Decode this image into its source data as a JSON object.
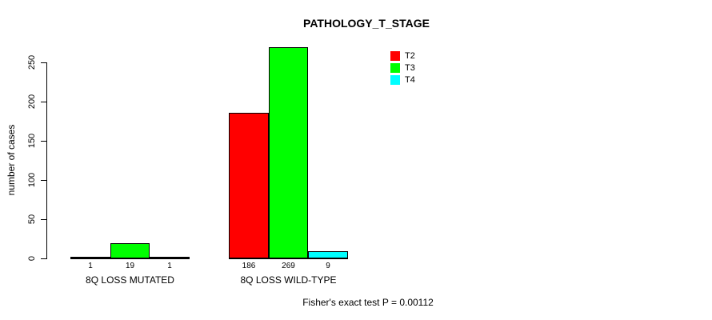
{
  "chart_data": {
    "type": "bar",
    "title": "PATHOLOGY_T_STAGE",
    "ylabel": "number of cases",
    "xlabel": "",
    "ylim": [
      0,
      250
    ],
    "yticks": [
      0,
      50,
      100,
      150,
      200,
      250
    ],
    "grid": false,
    "legend_position": "top-right-inside",
    "categories": [
      "8Q LOSS MUTATED",
      "8Q LOSS WILD-TYPE"
    ],
    "series": [
      {
        "name": "T2",
        "color": "#ff0000",
        "values": [
          1,
          186
        ]
      },
      {
        "name": "T3",
        "color": "#00ff00",
        "values": [
          19,
          269
        ]
      },
      {
        "name": "T4",
        "color": "#00ffff",
        "values": [
          1,
          9
        ]
      }
    ],
    "bar_value_labels": [
      [
        1,
        19,
        1
      ],
      [
        186,
        269,
        9
      ]
    ],
    "annotation": "Fisher's exact test P = 0.00112",
    "axis_color": "#000000",
    "text_color": "#000000",
    "background": "#ffffff"
  }
}
